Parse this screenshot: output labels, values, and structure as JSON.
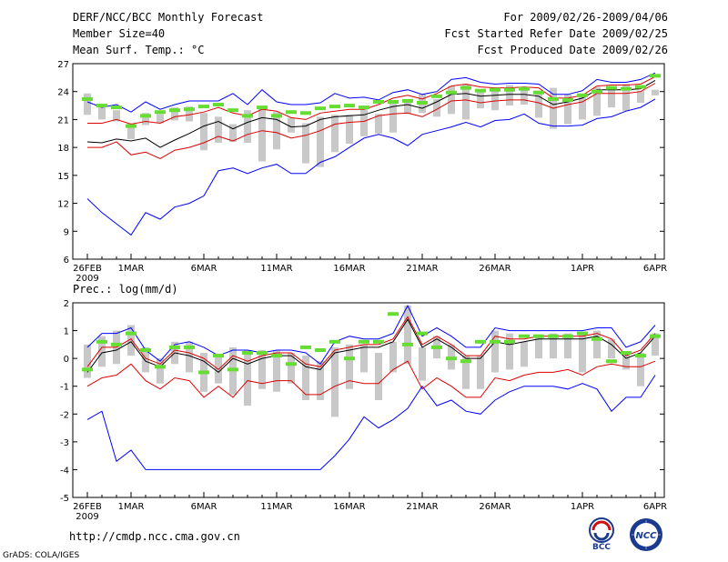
{
  "header": {
    "title": "DERF/NCC/BCC Monthly Forecast",
    "member_size": "Member Size=40",
    "variable": "Mean Surf. Temp.: °C",
    "period": "For 2009/02/26-2009/04/06",
    "start_date": "Fcst Started Refer Date 2009/02/25",
    "produced_date": "Fcst Produced Date 2009/02/26"
  },
  "footer": {
    "url": "http://cmdp.ncc.cma.gov.cn",
    "credit": "GrADS: COLA/IGES",
    "logo_bcc": "BCC",
    "logo_ncc": "NCC"
  },
  "colors": {
    "max_min": "#0000ff",
    "spread": "#dd0000",
    "mean": "#000000",
    "box": "#c8c8c8",
    "median": "#66dd33"
  },
  "chart_data": [
    {
      "type": "line",
      "title": "Mean Surf. Temp.: °C",
      "x_tick_labels": [
        "26FEB",
        "1MAR",
        "6MAR",
        "11MAR",
        "16MAR",
        "21MAR",
        "26MAR",
        "1APR",
        "6APR"
      ],
      "x_tick_days": [
        0,
        3,
        8,
        13,
        18,
        23,
        28,
        34,
        39
      ],
      "year_label": "2009",
      "ylim": [
        6,
        27
      ],
      "y_ticks": [
        6,
        9,
        12,
        15,
        18,
        21,
        24,
        27
      ],
      "days": 40,
      "series": [
        {
          "name": "max",
          "color": "blue",
          "values": [
            22.9,
            22.3,
            22.6,
            21.8,
            22.9,
            22.1,
            22.6,
            23.0,
            23.0,
            23.0,
            23.8,
            22.6,
            24.2,
            22.9,
            22.6,
            22.6,
            22.8,
            23.8,
            23.3,
            23.4,
            23.1,
            23.9,
            24.2,
            23.7,
            24.0,
            25.3,
            25.5,
            25.0,
            24.8,
            24.9,
            24.9,
            24.8,
            23.7,
            23.7,
            24.1,
            25.3,
            25.0,
            25.0,
            25.3,
            26.0
          ]
        },
        {
          "name": "upper",
          "color": "red",
          "values": [
            20.6,
            20.6,
            21.0,
            20.5,
            20.8,
            20.6,
            21.3,
            21.5,
            21.8,
            22.3,
            21.7,
            21.4,
            22.1,
            21.9,
            21.2,
            21.0,
            21.7,
            21.9,
            22.1,
            22.1,
            22.6,
            23.3,
            23.6,
            23.2,
            23.8,
            24.6,
            24.8,
            24.5,
            24.4,
            24.4,
            24.5,
            24.4,
            23.3,
            23.3,
            23.6,
            24.6,
            24.7,
            24.7,
            24.8,
            25.6
          ]
        },
        {
          "name": "mean",
          "color": "black",
          "values": [
            18.6,
            18.5,
            18.9,
            18.7,
            19.0,
            18.0,
            18.8,
            19.5,
            20.3,
            20.8,
            20.0,
            20.7,
            21.2,
            21.0,
            20.2,
            20.3,
            21.0,
            21.3,
            21.4,
            21.5,
            22.0,
            22.4,
            22.6,
            22.2,
            22.9,
            23.7,
            23.8,
            23.5,
            23.6,
            23.7,
            23.7,
            23.5,
            22.6,
            22.9,
            23.3,
            24.2,
            24.2,
            24.2,
            24.3,
            25.2
          ]
        },
        {
          "name": "lower",
          "color": "red",
          "values": [
            18.0,
            18.0,
            18.6,
            17.2,
            17.5,
            16.8,
            17.7,
            18.0,
            18.5,
            19.2,
            18.7,
            19.4,
            19.8,
            19.6,
            19.0,
            19.3,
            19.8,
            20.5,
            20.7,
            20.8,
            21.4,
            21.6,
            21.7,
            21.3,
            22.1,
            23.0,
            23.1,
            22.8,
            23.0,
            23.1,
            23.1,
            22.8,
            22.2,
            22.6,
            22.9,
            23.8,
            23.8,
            23.8,
            24.0,
            24.9
          ]
        },
        {
          "name": "min",
          "color": "blue",
          "values": [
            12.5,
            11.0,
            9.8,
            8.6,
            11.0,
            10.3,
            11.6,
            12.0,
            12.8,
            15.5,
            15.8,
            15.2,
            15.8,
            16.2,
            15.2,
            15.2,
            16.4,
            17.0,
            18.0,
            19.0,
            19.4,
            19.0,
            18.2,
            19.4,
            19.8,
            20.2,
            20.7,
            20.2,
            20.9,
            21.0,
            21.6,
            20.6,
            20.3,
            20.3,
            20.4,
            21.1,
            21.3,
            21.9,
            22.3,
            23.2
          ]
        }
      ],
      "boxes": [
        [
          21.5,
          23.8
        ],
        [
          21.0,
          22.4
        ],
        [
          20.8,
          22.0
        ],
        [
          18.9,
          20.6
        ],
        [
          20.4,
          21.7
        ],
        [
          20.6,
          21.6
        ],
        [
          20.9,
          22.3
        ],
        [
          20.8,
          22.4
        ],
        [
          17.7,
          21.7
        ],
        [
          18.5,
          21.3
        ],
        [
          18.6,
          20.5
        ],
        [
          18.5,
          22.0
        ],
        [
          16.5,
          22.3
        ],
        [
          17.8,
          21.8
        ],
        [
          19.6,
          21.2
        ],
        [
          16.3,
          20.6
        ],
        [
          15.9,
          21.3
        ],
        [
          17.5,
          21.5
        ],
        [
          18.4,
          21.5
        ],
        [
          19.2,
          22.1
        ],
        [
          19.5,
          21.6
        ],
        [
          19.6,
          22.9
        ],
        [
          21.6,
          23.2
        ],
        [
          21.7,
          23.7
        ],
        [
          21.3,
          23.2
        ],
        [
          21.6,
          24.6
        ],
        [
          21.0,
          24.8
        ],
        [
          22.2,
          24.2
        ],
        [
          22.0,
          24.3
        ],
        [
          22.5,
          24.7
        ],
        [
          22.6,
          24.4
        ],
        [
          21.2,
          24.1
        ],
        [
          20.0,
          24.4
        ],
        [
          20.5,
          23.7
        ],
        [
          21.0,
          23.6
        ],
        [
          21.4,
          24.5
        ],
        [
          22.3,
          24.3
        ],
        [
          21.9,
          24.8
        ],
        [
          22.8,
          24.1
        ],
        [
          23.6,
          24.2
        ]
      ],
      "medians": [
        23.2,
        22.5,
        22.3,
        20.3,
        21.4,
        21.8,
        22.0,
        22.1,
        22.4,
        22.6,
        22.0,
        21.4,
        22.3,
        21.4,
        21.8,
        21.7,
        22.2,
        22.4,
        22.5,
        22.3,
        22.9,
        22.9,
        23.0,
        22.8,
        23.5,
        23.9,
        24.4,
        24.1,
        24.2,
        24.2,
        24.3,
        23.9,
        23.2,
        23.1,
        23.6,
        24.0,
        24.4,
        24.3,
        24.5,
        25.7
      ]
    },
    {
      "type": "line",
      "title": "Prec.: log(mm/d)",
      "x_tick_labels": [
        "26FEB",
        "1MAR",
        "6MAR",
        "11MAR",
        "16MAR",
        "21MAR",
        "26MAR",
        "1APR",
        "6APR"
      ],
      "x_tick_days": [
        0,
        3,
        8,
        13,
        18,
        23,
        28,
        34,
        39
      ],
      "year_label": "2009",
      "ylim": [
        -5,
        2
      ],
      "y_ticks": [
        -5,
        -4,
        -3,
        -2,
        -1,
        0,
        1,
        2
      ],
      "days": 40,
      "series": [
        {
          "name": "max",
          "color": "blue",
          "values": [
            0.4,
            0.9,
            0.9,
            1.1,
            0.3,
            -0.1,
            0.5,
            0.6,
            0.4,
            0.1,
            0.3,
            0.3,
            0.2,
            0.3,
            0.3,
            0.2,
            -0.2,
            0.6,
            0.8,
            0.7,
            0.7,
            0.9,
            1.9,
            0.8,
            1.1,
            0.8,
            0.4,
            0.4,
            1.1,
            1.0,
            1.0,
            1.0,
            1.0,
            1.0,
            1.0,
            1.1,
            1.1,
            0.4,
            0.6,
            1.2
          ]
        },
        {
          "name": "upper",
          "color": "red",
          "values": [
            -0.3,
            0.4,
            0.4,
            0.7,
            0.0,
            -0.2,
            0.3,
            0.2,
            0.0,
            -0.4,
            0.1,
            -0.1,
            0.1,
            0.2,
            0.2,
            -0.2,
            -0.3,
            0.3,
            0.4,
            0.5,
            0.5,
            0.7,
            1.5,
            0.5,
            0.8,
            0.5,
            0.1,
            0.1,
            0.8,
            0.7,
            0.7,
            0.8,
            0.8,
            0.8,
            0.8,
            0.9,
            0.7,
            0.1,
            0.3,
            0.9
          ]
        },
        {
          "name": "mean",
          "color": "black",
          "values": [
            -0.5,
            0.2,
            0.3,
            0.6,
            -0.1,
            -0.3,
            0.2,
            0.1,
            -0.1,
            -0.5,
            0.0,
            -0.2,
            0.0,
            0.1,
            0.1,
            -0.3,
            -0.4,
            0.2,
            0.3,
            0.4,
            0.4,
            0.6,
            1.4,
            0.4,
            0.7,
            0.4,
            0.0,
            0.0,
            0.6,
            0.5,
            0.6,
            0.7,
            0.7,
            0.7,
            0.7,
            0.8,
            0.5,
            0.0,
            0.2,
            0.8
          ]
        },
        {
          "name": "lower",
          "color": "red",
          "values": [
            -1.0,
            -0.7,
            -0.6,
            -0.2,
            -0.8,
            -1.1,
            -0.7,
            -0.8,
            -1.4,
            -1.0,
            -1.4,
            -0.8,
            -0.9,
            -0.8,
            -0.8,
            -1.3,
            -1.3,
            -1.0,
            -0.8,
            -0.9,
            -0.9,
            -0.4,
            -0.1,
            -1.1,
            -0.7,
            -1.0,
            -1.4,
            -1.4,
            -0.7,
            -0.8,
            -0.6,
            -0.5,
            -0.5,
            -0.4,
            -0.6,
            -0.3,
            -0.2,
            -0.3,
            -0.3,
            -0.1
          ]
        },
        {
          "name": "min",
          "color": "blue",
          "values": [
            -2.2,
            -1.9,
            -3.7,
            -3.3,
            -4.0,
            -4.0,
            -4.0,
            -4.0,
            -4.0,
            -4.0,
            -4.0,
            -4.0,
            -4.0,
            -4.0,
            -4.0,
            -4.0,
            -4.0,
            -3.5,
            -2.9,
            -2.1,
            -2.5,
            -2.2,
            -1.8,
            -1.0,
            -1.7,
            -1.5,
            -1.9,
            -2.0,
            -1.5,
            -1.2,
            -1.0,
            -1.0,
            -1.0,
            -1.1,
            -0.9,
            -1.1,
            -1.9,
            -1.4,
            -1.4,
            -0.6
          ]
        }
      ],
      "boxes": [
        [
          -0.7,
          0.5
        ],
        [
          -0.3,
          0.8
        ],
        [
          -0.2,
          1.0
        ],
        [
          0.1,
          1.2
        ],
        [
          -0.5,
          0.4
        ],
        [
          -0.9,
          0.0
        ],
        [
          -0.2,
          0.6
        ],
        [
          -0.5,
          0.6
        ],
        [
          -1.2,
          0.2
        ],
        [
          -0.9,
          0.1
        ],
        [
          -1.3,
          0.4
        ],
        [
          -1.7,
          0.3
        ],
        [
          -1.1,
          0.3
        ],
        [
          -1.2,
          0.3
        ],
        [
          -0.9,
          0.2
        ],
        [
          -1.5,
          0.1
        ],
        [
          -1.5,
          -0.1
        ],
        [
          -2.1,
          0.4
        ],
        [
          -1.1,
          0.5
        ],
        [
          -0.5,
          0.5
        ],
        [
          -1.5,
          0.2
        ],
        [
          -0.5,
          0.6
        ],
        [
          -0.2,
          1.9
        ],
        [
          -0.8,
          0.4
        ],
        [
          0.0,
          0.8
        ],
        [
          -0.4,
          0.5
        ],
        [
          -1.1,
          0.1
        ],
        [
          -1.1,
          0.1
        ],
        [
          -0.5,
          1.0
        ],
        [
          -0.4,
          0.9
        ],
        [
          -0.3,
          0.6
        ],
        [
          0.0,
          0.8
        ],
        [
          0.0,
          0.9
        ],
        [
          0.0,
          0.9
        ],
        [
          -0.5,
          0.9
        ],
        [
          0.0,
          1.0
        ],
        [
          0.0,
          0.7
        ],
        [
          -0.4,
          0.2
        ],
        [
          -1.0,
          0.2
        ],
        [
          0.1,
          0.9
        ]
      ],
      "medians": [
        -0.4,
        0.6,
        0.5,
        0.9,
        0.3,
        -0.3,
        0.4,
        0.4,
        -0.5,
        0.1,
        -0.4,
        0.2,
        0.2,
        0.1,
        -0.2,
        0.4,
        0.3,
        0.6,
        0.0,
        0.6,
        0.6,
        1.6,
        0.5,
        0.9,
        0.4,
        0.0,
        -0.1,
        0.6,
        0.6,
        0.6,
        0.8,
        0.8,
        0.8,
        0.8,
        0.9,
        0.7,
        -0.1,
        0.2,
        0.1,
        0.8
      ]
    }
  ]
}
